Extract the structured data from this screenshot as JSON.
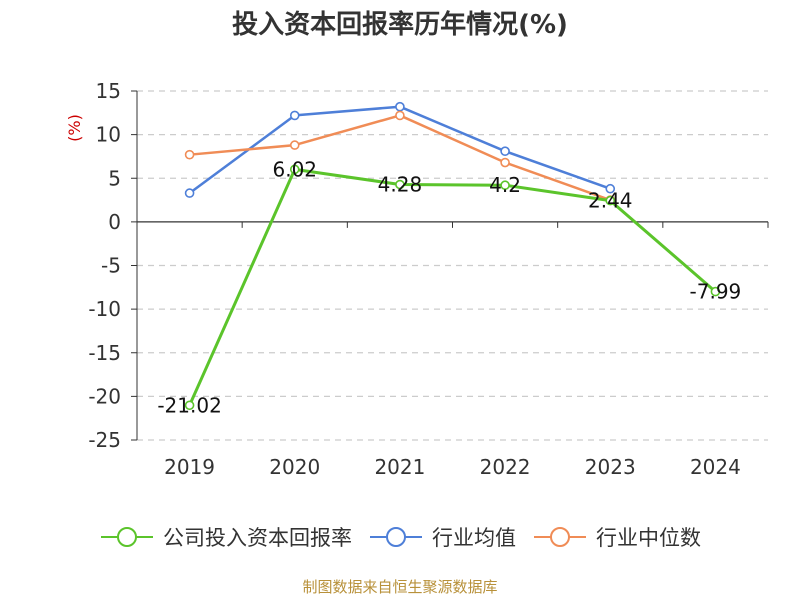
{
  "chart_data": {
    "type": "line",
    "title": "投入资本回报率历年情况(%)",
    "ylabel": "(%)",
    "xlabel": "",
    "categories": [
      "2019",
      "2020",
      "2021",
      "2022",
      "2023",
      "2024"
    ],
    "ylim": [
      -25,
      15
    ],
    "yticks": [
      15,
      10,
      5,
      0,
      -5,
      -10,
      -15,
      -20,
      -25
    ],
    "grid": true,
    "legend_position": "bottom",
    "series": [
      {
        "name": "公司投入资本回报率",
        "color": "#5bc42b",
        "values": [
          -21.02,
          6.02,
          4.28,
          4.2,
          2.44,
          -7.99
        ],
        "labels": [
          "-21.02",
          "6.02",
          "4.28",
          "4.2",
          "2.44",
          "-7.99"
        ]
      },
      {
        "name": "行业均值",
        "color": "#4e7fd8",
        "values": [
          3.3,
          12.2,
          13.2,
          8.1,
          3.8,
          null
        ]
      },
      {
        "name": "行业中位数",
        "color": "#f08c56",
        "values": [
          7.7,
          8.8,
          12.2,
          6.8,
          2.5,
          null
        ]
      }
    ]
  },
  "footer": {
    "source": "制图数据来自恒生聚源数据库"
  }
}
